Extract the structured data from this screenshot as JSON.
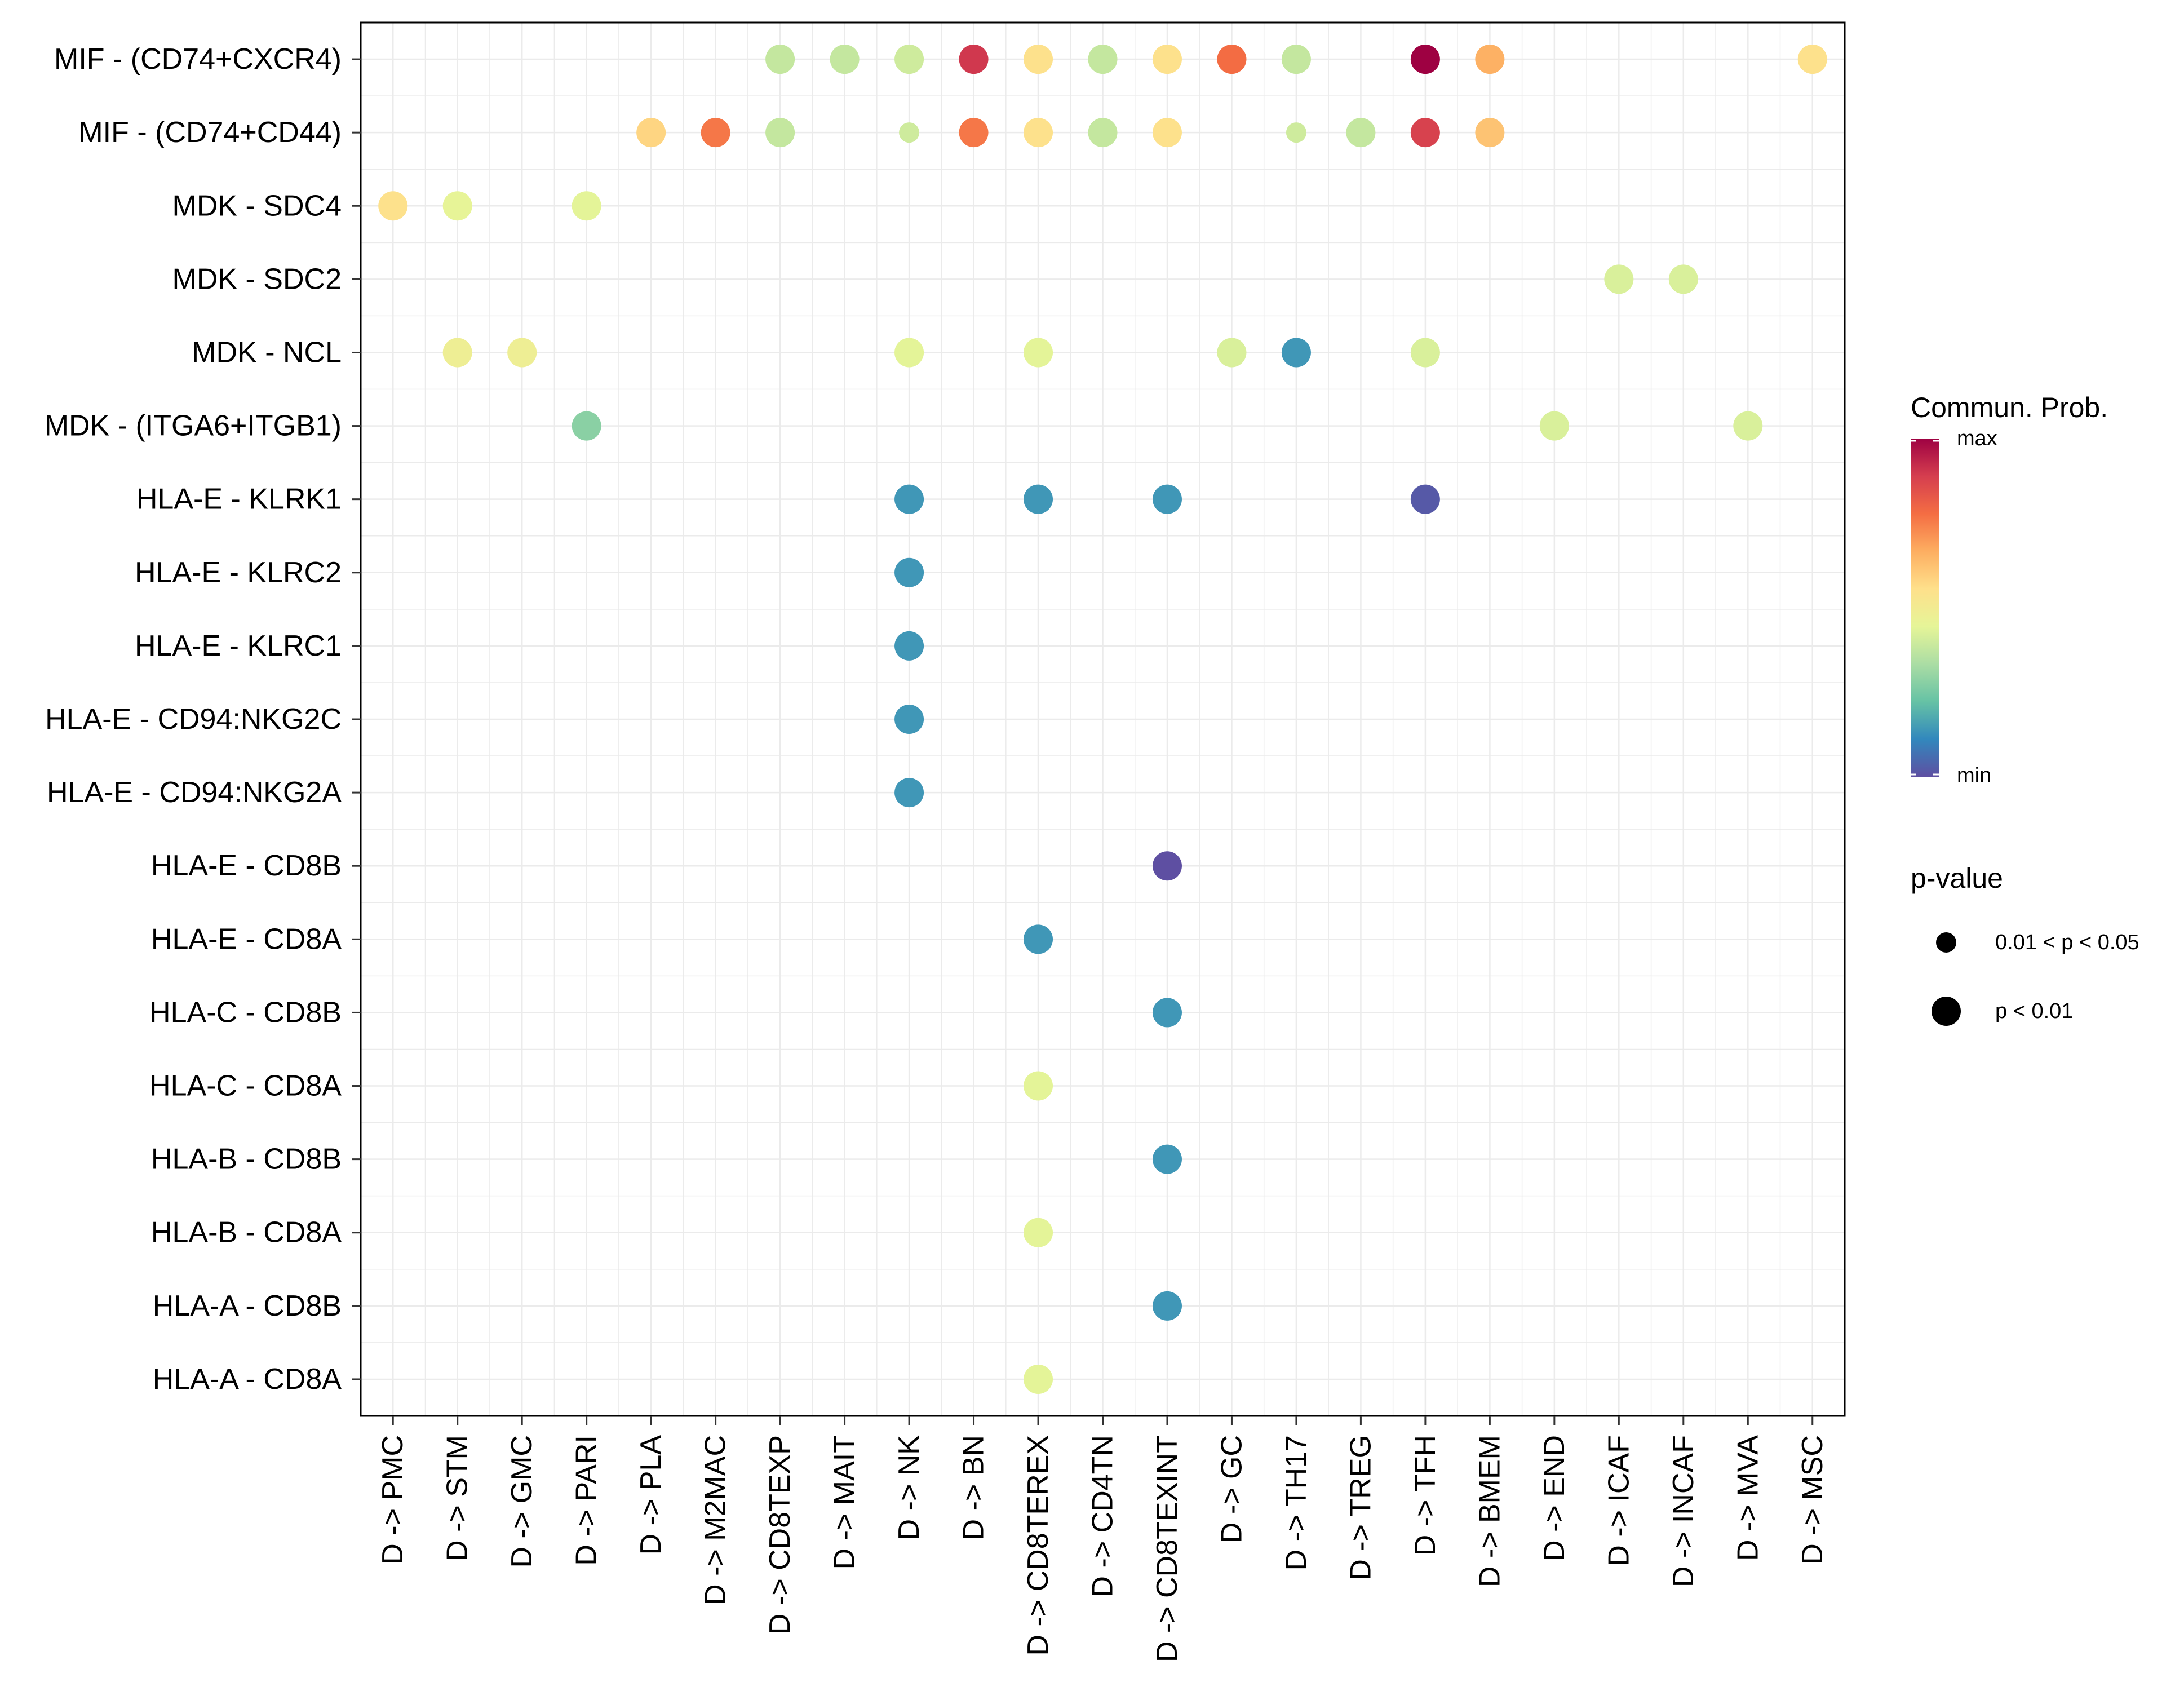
{
  "chart_data": {
    "type": "dotplot",
    "title": "",
    "xlabel": "",
    "ylabel": "",
    "x_categories": [
      "D -> PMC",
      "D -> STM",
      "D -> GMC",
      "D -> PARI",
      "D -> PLA",
      "D -> M2MAC",
      "D -> CD8TEXP",
      "D -> MAIT",
      "D -> NK",
      "D -> BN",
      "D -> CD8TEREX",
      "D -> CD4TN",
      "D -> CD8TEXINT",
      "D -> GC",
      "D -> TH17",
      "D -> TREG",
      "D -> TFH",
      "D -> BMEM",
      "D -> END",
      "D -> ICAF",
      "D -> INCAF",
      "D -> MVA",
      "D -> MSC"
    ],
    "y_categories": [
      "MIF - (CD74+CXCR4)",
      "MIF - (CD74+CD44)",
      "MDK - SDC4",
      "MDK - SDC2",
      "MDK - NCL",
      "MDK - (ITGA6+ITGB1)",
      "HLA-E - KLRK1",
      "HLA-E - KLRC2",
      "HLA-E - KLRC1",
      "HLA-E - CD94:NKG2C",
      "HLA-E - CD94:NKG2A",
      "HLA-E - CD8B",
      "HLA-E - CD8A",
      "HLA-C - CD8B",
      "HLA-C - CD8A",
      "HLA-B - CD8B",
      "HLA-B - CD8A",
      "HLA-A - CD8B",
      "HLA-A - CD8A"
    ],
    "prob_scale_note": "prob is relative communication probability on 0 (min) to 1 (max) color scale; pval_class 1 = 0.01 < p < 0.05, 2 = p < 0.01",
    "points": [
      {
        "x": "D -> CD8TEXP",
        "y": "MIF - (CD74+CXCR4)",
        "prob": 0.38,
        "pval_class": 2
      },
      {
        "x": "D -> MAIT",
        "y": "MIF - (CD74+CXCR4)",
        "prob": 0.38,
        "pval_class": 2
      },
      {
        "x": "D -> NK",
        "y": "MIF - (CD74+CXCR4)",
        "prob": 0.4,
        "pval_class": 2
      },
      {
        "x": "D -> BN",
        "y": "MIF - (CD74+CXCR4)",
        "prob": 0.9,
        "pval_class": 2
      },
      {
        "x": "D -> CD8TEREX",
        "y": "MIF - (CD74+CXCR4)",
        "prob": 0.55,
        "pval_class": 2
      },
      {
        "x": "D -> CD4TN",
        "y": "MIF - (CD74+CXCR4)",
        "prob": 0.38,
        "pval_class": 2
      },
      {
        "x": "D -> CD8TEXINT",
        "y": "MIF - (CD74+CXCR4)",
        "prob": 0.55,
        "pval_class": 2
      },
      {
        "x": "D -> GC",
        "y": "MIF - (CD74+CXCR4)",
        "prob": 0.78,
        "pval_class": 2
      },
      {
        "x": "D -> TH17",
        "y": "MIF - (CD74+CXCR4)",
        "prob": 0.38,
        "pval_class": 2
      },
      {
        "x": "D -> TFH",
        "y": "MIF - (CD74+CXCR4)",
        "prob": 1.0,
        "pval_class": 2
      },
      {
        "x": "D -> BMEM",
        "y": "MIF - (CD74+CXCR4)",
        "prob": 0.66,
        "pval_class": 2
      },
      {
        "x": "D -> MSC",
        "y": "MIF - (CD74+CXCR4)",
        "prob": 0.55,
        "pval_class": 2
      },
      {
        "x": "D -> PLA",
        "y": "MIF - (CD74+CD44)",
        "prob": 0.58,
        "pval_class": 2
      },
      {
        "x": "D -> M2MAC",
        "y": "MIF - (CD74+CD44)",
        "prob": 0.76,
        "pval_class": 2
      },
      {
        "x": "D -> CD8TEXP",
        "y": "MIF - (CD74+CD44)",
        "prob": 0.38,
        "pval_class": 2
      },
      {
        "x": "D -> NK",
        "y": "MIF - (CD74+CD44)",
        "prob": 0.4,
        "pval_class": 1
      },
      {
        "x": "D -> BN",
        "y": "MIF - (CD74+CD44)",
        "prob": 0.76,
        "pval_class": 2
      },
      {
        "x": "D -> CD8TEREX",
        "y": "MIF - (CD74+CD44)",
        "prob": 0.55,
        "pval_class": 2
      },
      {
        "x": "D -> CD4TN",
        "y": "MIF - (CD74+CD44)",
        "prob": 0.38,
        "pval_class": 2
      },
      {
        "x": "D -> CD8TEXINT",
        "y": "MIF - (CD74+CD44)",
        "prob": 0.55,
        "pval_class": 2
      },
      {
        "x": "D -> TH17",
        "y": "MIF - (CD74+CD44)",
        "prob": 0.4,
        "pval_class": 1
      },
      {
        "x": "D -> TREG",
        "y": "MIF - (CD74+CD44)",
        "prob": 0.38,
        "pval_class": 2
      },
      {
        "x": "D -> TFH",
        "y": "MIF - (CD74+CD44)",
        "prob": 0.88,
        "pval_class": 2
      },
      {
        "x": "D -> BMEM",
        "y": "MIF - (CD74+CD44)",
        "prob": 0.62,
        "pval_class": 2
      },
      {
        "x": "D -> PMC",
        "y": "MDK - SDC4",
        "prob": 0.55,
        "pval_class": 2
      },
      {
        "x": "D -> STM",
        "y": "MDK - SDC4",
        "prob": 0.45,
        "pval_class": 2
      },
      {
        "x": "D -> PARI",
        "y": "MDK - SDC4",
        "prob": 0.44,
        "pval_class": 2
      },
      {
        "x": "D -> ICAF",
        "y": "MDK - SDC2",
        "prob": 0.42,
        "pval_class": 2
      },
      {
        "x": "D -> INCAF",
        "y": "MDK - SDC2",
        "prob": 0.42,
        "pval_class": 2
      },
      {
        "x": "D -> STM",
        "y": "MDK - NCL",
        "prob": 0.48,
        "pval_class": 2
      },
      {
        "x": "D -> GMC",
        "y": "MDK - NCL",
        "prob": 0.48,
        "pval_class": 2
      },
      {
        "x": "D -> NK",
        "y": "MDK - NCL",
        "prob": 0.44,
        "pval_class": 2
      },
      {
        "x": "D -> CD8TEREX",
        "y": "MDK - NCL",
        "prob": 0.44,
        "pval_class": 2
      },
      {
        "x": "D -> GC",
        "y": "MDK - NCL",
        "prob": 0.42,
        "pval_class": 2
      },
      {
        "x": "D -> TH17",
        "y": "MDK - NCL",
        "prob": 0.14,
        "pval_class": 2
      },
      {
        "x": "D -> TFH",
        "y": "MDK - NCL",
        "prob": 0.42,
        "pval_class": 2
      },
      {
        "x": "D -> PARI",
        "y": "MDK - (ITGA6+ITGB1)",
        "prob": 0.28,
        "pval_class": 2
      },
      {
        "x": "D -> END",
        "y": "MDK - (ITGA6+ITGB1)",
        "prob": 0.42,
        "pval_class": 2
      },
      {
        "x": "D -> MVA",
        "y": "MDK - (ITGA6+ITGB1)",
        "prob": 0.42,
        "pval_class": 2
      },
      {
        "x": "D -> NK",
        "y": "HLA-E - KLRK1",
        "prob": 0.14,
        "pval_class": 2
      },
      {
        "x": "D -> CD8TEREX",
        "y": "HLA-E - KLRK1",
        "prob": 0.14,
        "pval_class": 2
      },
      {
        "x": "D -> CD8TEXINT",
        "y": "HLA-E - KLRK1",
        "prob": 0.14,
        "pval_class": 2
      },
      {
        "x": "D -> TFH",
        "y": "HLA-E - KLRK1",
        "prob": 0.02,
        "pval_class": 2
      },
      {
        "x": "D -> NK",
        "y": "HLA-E - KLRC2",
        "prob": 0.14,
        "pval_class": 2
      },
      {
        "x": "D -> NK",
        "y": "HLA-E - KLRC1",
        "prob": 0.14,
        "pval_class": 2
      },
      {
        "x": "D -> NK",
        "y": "HLA-E - CD94:NKG2C",
        "prob": 0.14,
        "pval_class": 2
      },
      {
        "x": "D -> NK",
        "y": "HLA-E - CD94:NKG2A",
        "prob": 0.14,
        "pval_class": 2
      },
      {
        "x": "D -> CD8TEXINT",
        "y": "HLA-E - CD8B",
        "prob": 0.0,
        "pval_class": 2
      },
      {
        "x": "D -> CD8TEREX",
        "y": "HLA-E - CD8A",
        "prob": 0.14,
        "pval_class": 2
      },
      {
        "x": "D -> CD8TEXINT",
        "y": "HLA-C - CD8B",
        "prob": 0.14,
        "pval_class": 2
      },
      {
        "x": "D -> CD8TEREX",
        "y": "HLA-C - CD8A",
        "prob": 0.44,
        "pval_class": 2
      },
      {
        "x": "D -> CD8TEXINT",
        "y": "HLA-B - CD8B",
        "prob": 0.14,
        "pval_class": 2
      },
      {
        "x": "D -> CD8TEREX",
        "y": "HLA-B - CD8A",
        "prob": 0.44,
        "pval_class": 2
      },
      {
        "x": "D -> CD8TEXINT",
        "y": "HLA-A - CD8B",
        "prob": 0.14,
        "pval_class": 2
      },
      {
        "x": "D -> CD8TEREX",
        "y": "HLA-A - CD8A",
        "prob": 0.44,
        "pval_class": 2
      }
    ],
    "legend": {
      "color_title": "Commun. Prob.",
      "color_max_label": "max",
      "color_min_label": "min",
      "size_title": "p-value",
      "size_entries": [
        {
          "label": "0.01 < p < 0.05",
          "pval_class": 1
        },
        {
          "label": "p < 0.01",
          "pval_class": 2
        }
      ],
      "color_stops": [
        "#5E4FA2",
        "#3288BD",
        "#66C2A5",
        "#ABDDA4",
        "#E6F598",
        "#FEE08B",
        "#FDAE61",
        "#F46D43",
        "#D53E4F",
        "#9E0142"
      ]
    }
  }
}
